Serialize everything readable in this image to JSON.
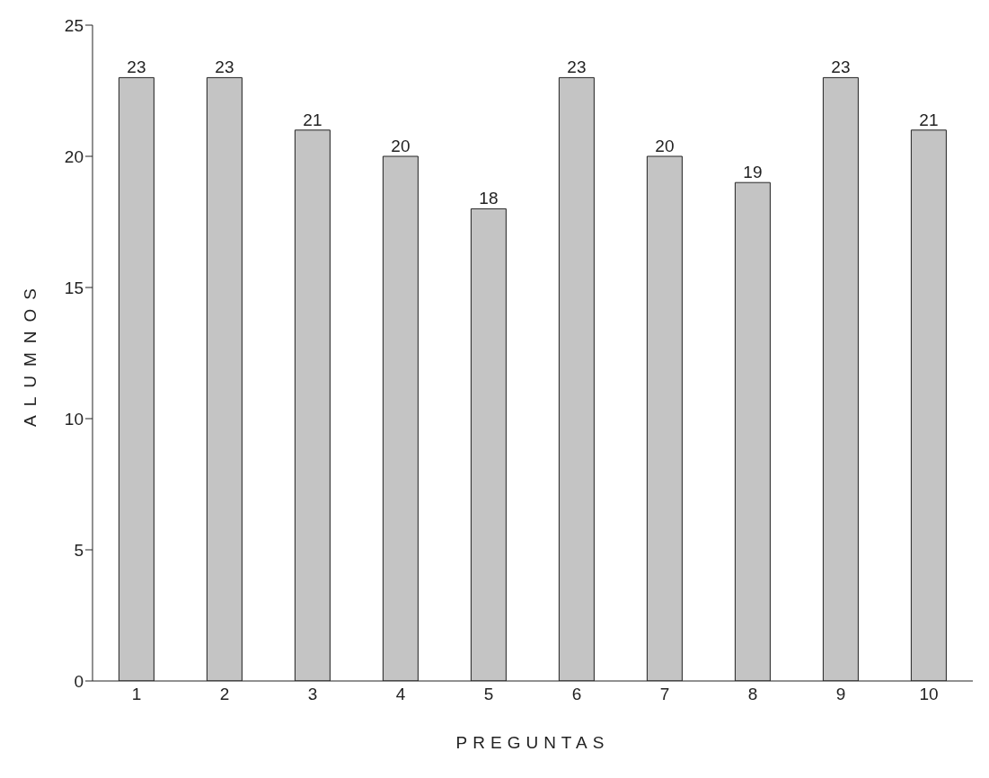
{
  "chart_data": {
    "type": "bar",
    "xlabel": "PREGUNTAS",
    "ylabel": "ALUMNOS",
    "categories": [
      "1",
      "2",
      "3",
      "4",
      "5",
      "6",
      "7",
      "8",
      "9",
      "10"
    ],
    "values": [
      23,
      23,
      21,
      20,
      18,
      23,
      20,
      19,
      23,
      21
    ],
    "color": "#c4c4c4",
    "ylim": [
      0,
      25
    ],
    "yticks": [
      0,
      5,
      10,
      15,
      20,
      25
    ],
    "grid": false,
    "legend": false,
    "data_labels": true
  }
}
